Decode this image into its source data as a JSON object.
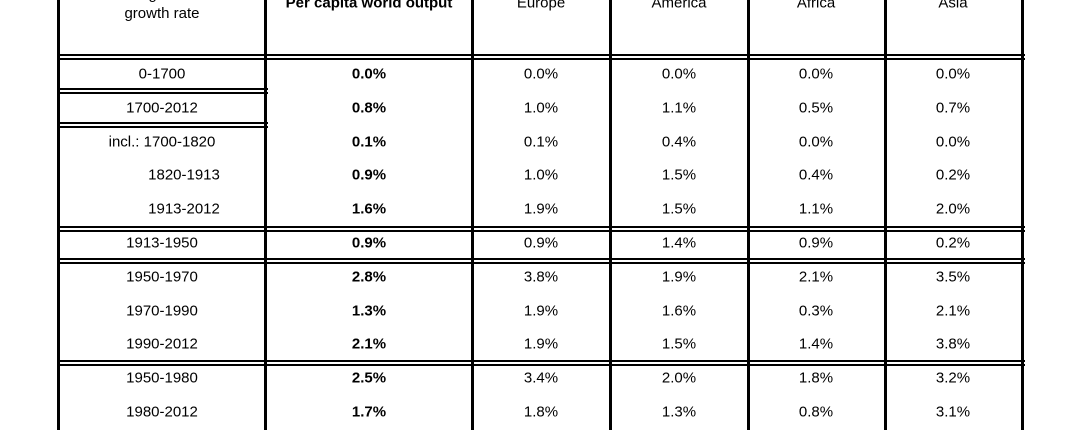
{
  "table": {
    "header": [
      "Average annual growth rate",
      "Per capita world output",
      "Europe",
      "America",
      "Africa",
      "Asia"
    ],
    "rows": [
      [
        "0-1700",
        "0.0%",
        "0.0%",
        "0.0%",
        "0.0%",
        "0.0%"
      ],
      [
        "1700-2012",
        "0.8%",
        "1.0%",
        "1.1%",
        "0.5%",
        "0.7%"
      ],
      [
        "incl.: 1700-1820",
        "0.1%",
        "0.1%",
        "0.4%",
        "0.0%",
        "0.0%"
      ],
      [
        "1820-1913",
        "0.9%",
        "1.0%",
        "1.5%",
        "0.4%",
        "0.2%"
      ],
      [
        "1913-2012",
        "1.6%",
        "1.9%",
        "1.5%",
        "1.1%",
        "2.0%"
      ],
      [
        "1913-1950",
        "0.9%",
        "0.9%",
        "1.4%",
        "0.9%",
        "0.2%"
      ],
      [
        "1950-1970",
        "2.8%",
        "3.8%",
        "1.9%",
        "2.1%",
        "3.5%"
      ],
      [
        "1970-1990",
        "1.3%",
        "1.9%",
        "1.6%",
        "0.3%",
        "2.1%"
      ],
      [
        "1990-2012",
        "2.1%",
        "1.9%",
        "1.5%",
        "1.4%",
        "3.8%"
      ],
      [
        "1950-1980",
        "2.5%",
        "3.4%",
        "2.0%",
        "1.8%",
        "3.2%"
      ],
      [
        "1980-2012",
        "1.7%",
        "1.8%",
        "1.3%",
        "0.8%",
        "3.1%"
      ]
    ]
  }
}
